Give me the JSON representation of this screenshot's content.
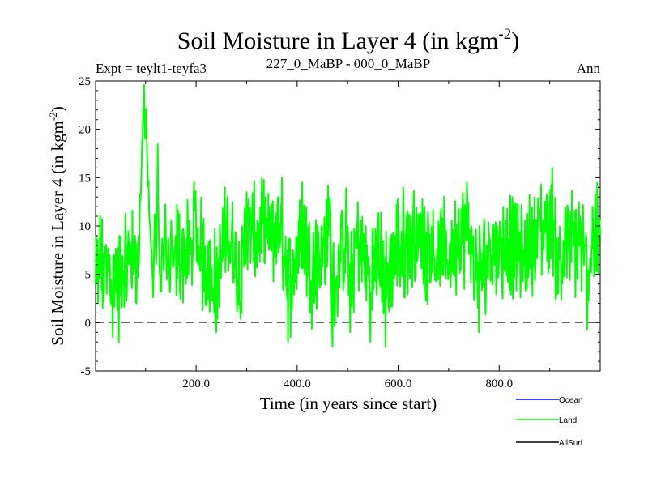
{
  "chart_data": {
    "type": "line",
    "title": "Soil Moisture in Layer 4 (in kgm",
    "title_superscript": "-2",
    "title_suffix": ")",
    "subtitle_left": "Expt = teylt1-teyfa3",
    "subtitle_center": "227_0_MaBP - 000_0_MaBP",
    "subtitle_right": "Ann",
    "xlabel": "Time (in years since start)",
    "ylabel": "Soil Moisture in Layer 4 (in kgm",
    "ylabel_superscript": "-2",
    "ylabel_suffix": ")",
    "xlim": [
      1,
      1000
    ],
    "ylim": [
      -5,
      25
    ],
    "x_ticks": [
      200,
      400,
      600,
      800
    ],
    "x_tick_labels": [
      "200.0",
      "400.0",
      "600.0",
      "800.0"
    ],
    "y_ticks": [
      -5,
      0,
      5,
      10,
      15,
      20,
      25
    ],
    "y_tick_labels": [
      "-5",
      "0",
      "5",
      "10",
      "15",
      "20",
      "25"
    ],
    "reference_line": 0,
    "series": [
      {
        "name": "Land",
        "color": "#00ff00",
        "anchors": [
          [
            1,
            4
          ],
          [
            6,
            2
          ],
          [
            11,
            6
          ],
          [
            15,
            1.5
          ],
          [
            19,
            7
          ],
          [
            23,
            3
          ],
          [
            27,
            6
          ],
          [
            31,
            2
          ],
          [
            35,
            -1.5
          ],
          [
            39,
            5
          ],
          [
            43,
            3
          ],
          [
            47,
            -2
          ],
          [
            51,
            6
          ],
          [
            55,
            4
          ],
          [
            59,
            7
          ],
          [
            63,
            3
          ],
          [
            67,
            6
          ],
          [
            71,
            8
          ],
          [
            75,
            5
          ],
          [
            79,
            9
          ],
          [
            83,
            6
          ],
          [
            86,
            9
          ],
          [
            89,
            12
          ],
          [
            92,
            16
          ],
          [
            95,
            21
          ],
          [
            97,
            24.5
          ],
          [
            99,
            19
          ],
          [
            101,
            22
          ],
          [
            103,
            17
          ],
          [
            106,
            14
          ],
          [
            109,
            10
          ],
          [
            112,
            7
          ],
          [
            115,
            3
          ],
          [
            118,
            11
          ],
          [
            121,
            5
          ],
          [
            124,
            17.5
          ],
          [
            127,
            7
          ],
          [
            130,
            2
          ],
          [
            133,
            9
          ],
          [
            136,
            6
          ],
          [
            139,
            11
          ],
          [
            142,
            4
          ],
          [
            145,
            8
          ],
          [
            148,
            3
          ],
          [
            151,
            10
          ],
          [
            155,
            5
          ],
          [
            159,
            8
          ],
          [
            190,
            7
          ],
          [
            195,
            13
          ],
          [
            240,
            -1
          ],
          [
            262,
            13
          ],
          [
            290,
            1
          ],
          [
            300,
            13.5
          ],
          [
            345,
            12
          ],
          [
            370,
            15
          ],
          [
            382,
            -2
          ],
          [
            410,
            14.5
          ],
          [
            430,
            3
          ],
          [
            465,
            13
          ],
          [
            470,
            -2.5
          ],
          [
            498,
            11.5
          ],
          [
            505,
            -1
          ],
          [
            520,
            12.5
          ],
          [
            545,
            -2
          ],
          [
            560,
            10
          ],
          [
            575,
            -2.5
          ],
          [
            600,
            9
          ],
          [
            630,
            12
          ],
          [
            660,
            10
          ],
          [
            690,
            6
          ],
          [
            736,
            14.5
          ],
          [
            760,
            -1
          ],
          [
            780,
            9
          ],
          [
            825,
            10
          ],
          [
            850,
            6
          ],
          [
            870,
            13
          ],
          [
            905,
            16
          ],
          [
            915,
            4
          ],
          [
            930,
            9
          ],
          [
            960,
            11
          ],
          [
            975,
            1.5
          ],
          [
            985,
            12
          ],
          [
            995,
            11
          ],
          [
            1000,
            9
          ]
        ]
      }
    ],
    "legend": [
      {
        "label": "Ocean",
        "color": "#0000ff"
      },
      {
        "label": "Land",
        "color": "#00ff00"
      },
      {
        "label": "AllSurf",
        "color": "#000000"
      }
    ],
    "legend_position": "bottom-right"
  }
}
